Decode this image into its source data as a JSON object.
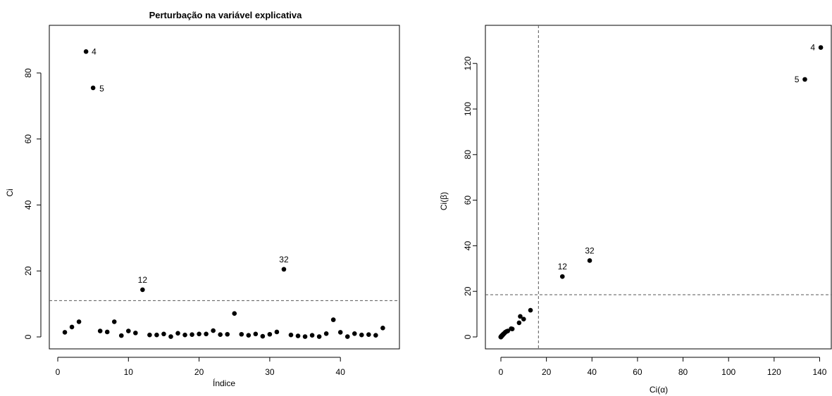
{
  "chart_data": [
    {
      "type": "scatter",
      "title": "Perturbação na variável explicativa",
      "xlabel": "Índice",
      "ylabel": "Ci",
      "xlim": [
        0,
        46
      ],
      "ylim": [
        0,
        87
      ],
      "x_ticks": [
        0,
        10,
        20,
        30,
        40
      ],
      "y_ticks": [
        0,
        20,
        40,
        60,
        80
      ],
      "reference_lines": [
        {
          "orientation": "horizontal",
          "value": 11,
          "style": "dashed"
        }
      ],
      "grid": false,
      "x": [
        1,
        2,
        3,
        4,
        5,
        6,
        7,
        8,
        9,
        10,
        11,
        12,
        13,
        14,
        15,
        16,
        17,
        18,
        19,
        20,
        21,
        22,
        23,
        24,
        25,
        26,
        27,
        28,
        29,
        30,
        31,
        32,
        33,
        34,
        35,
        36,
        37,
        38,
        39,
        40,
        41,
        42,
        43,
        44,
        45,
        46
      ],
      "y": [
        1.4,
        3.0,
        4.6,
        86.5,
        75.5,
        1.8,
        1.5,
        4.6,
        0.4,
        1.8,
        1.2,
        14.3,
        0.6,
        0.6,
        0.9,
        0.1,
        1.1,
        0.6,
        0.7,
        0.9,
        0.9,
        1.9,
        0.7,
        0.8,
        7.1,
        0.8,
        0.5,
        0.9,
        0.2,
        0.8,
        1.5,
        20.5,
        0.6,
        0.3,
        0.1,
        0.5,
        0.1,
        1.0,
        5.2,
        1.4,
        0.1,
        1.0,
        0.6,
        0.7,
        0.5,
        2.7
      ],
      "labels": [
        {
          "x": 4,
          "y": 86.5,
          "text": "4"
        },
        {
          "x": 5,
          "y": 75.5,
          "text": "5"
        },
        {
          "x": 12,
          "y": 14.3,
          "text": "12"
        },
        {
          "x": 32,
          "y": 20.5,
          "text": "32"
        }
      ]
    },
    {
      "type": "scatter",
      "title": "",
      "xlabel": "Ci(α)",
      "ylabel": "Ci(β)",
      "xlim": [
        0,
        141
      ],
      "ylim": [
        0,
        127
      ],
      "x_ticks": [
        0,
        20,
        40,
        60,
        80,
        100,
        120,
        140
      ],
      "y_ticks": [
        0,
        20,
        40,
        60,
        80,
        100,
        120
      ],
      "reference_lines": [
        {
          "orientation": "vertical",
          "value": 16.5,
          "style": "dashed"
        },
        {
          "orientation": "horizontal",
          "value": 18.5,
          "style": "dashed"
        }
      ],
      "grid": false,
      "x": [
        140.5,
        133.5,
        27,
        39,
        13,
        10,
        8.5,
        8,
        5,
        4.5,
        3,
        2.5,
        2,
        1.8,
        1.5,
        1.3,
        1.1,
        1.0,
        0.9,
        0.8,
        0.7,
        0.6,
        0.5,
        0.5,
        0.4,
        0.4,
        0.3,
        0.3,
        0.2,
        0.2,
        0.15,
        0.1,
        0.1,
        0.1,
        0.05,
        0.05,
        0.05,
        0,
        0,
        0,
        0,
        0,
        0,
        0,
        0,
        0
      ],
      "y": [
        127,
        113,
        26.5,
        33.5,
        11.7,
        7.8,
        9,
        6.2,
        3.5,
        3.6,
        2.6,
        2.4,
        2.1,
        1.9,
        1.6,
        1.4,
        1.2,
        1.1,
        1.0,
        0.9,
        0.8,
        0.7,
        0.6,
        0.5,
        0.5,
        0.4,
        0.4,
        0.3,
        0.3,
        0.2,
        0.2,
        0.15,
        0.1,
        0.1,
        0.1,
        0.05,
        0.05,
        0.05,
        0,
        0,
        0,
        0,
        0,
        0,
        0,
        0
      ],
      "labels": [
        {
          "x": 140.5,
          "y": 127,
          "text": "4"
        },
        {
          "x": 133.5,
          "y": 113,
          "text": "5"
        },
        {
          "x": 27,
          "y": 26.5,
          "text": "12"
        },
        {
          "x": 39,
          "y": 33.5,
          "text": "32"
        }
      ]
    }
  ]
}
